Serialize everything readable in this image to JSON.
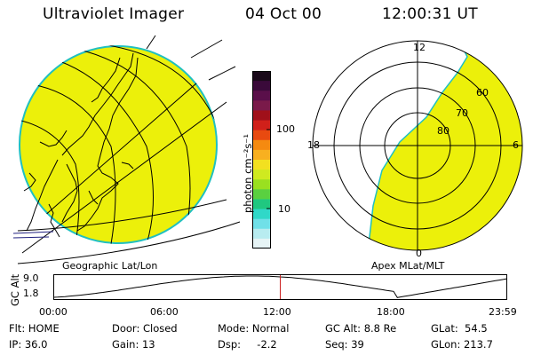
{
  "header": {
    "instrument": "Ultraviolet Imager",
    "date": "04 Oct 00",
    "time": "12:00:31 UT"
  },
  "colorbar": {
    "unit": "photon cm⁻²s⁻¹",
    "ticks": [
      {
        "value": 100,
        "label": "100"
      },
      {
        "value": 10,
        "label": "10"
      }
    ],
    "colors": [
      "#1a0a1a",
      "#3a0a3a",
      "#5a0f4a",
      "#7a1a4a",
      "#a0101a",
      "#d0201a",
      "#e84a10",
      "#f58a10",
      "#f8b020",
      "#f2e020",
      "#cfea20",
      "#9ae020",
      "#5ad040",
      "#20c880",
      "#30d8c8",
      "#70e0e8",
      "#b8ecf0",
      "#e6f4f6"
    ]
  },
  "left_map": {
    "caption": "Geographic Lat/Lon",
    "fill_color": "#ecf00a",
    "edge_color": "#20c0c0"
  },
  "right_map": {
    "caption": "Apex MLat/MLT",
    "fill_color": "#ecf00a",
    "mlt_labels": {
      "top": "12",
      "left": "18",
      "right": "6",
      "bottom": "0"
    },
    "lat_labels": [
      "60",
      "70",
      "80"
    ]
  },
  "altitude_plot": {
    "ylabel": "GC Alt",
    "yticks": [
      "9.0",
      "1.8"
    ],
    "xticks": [
      "00:00",
      "06:00",
      "12:00",
      "18:00",
      "23:59"
    ],
    "current_time_hours": 12.0,
    "marker_color": "#cc2020"
  },
  "status": {
    "row1": {
      "flt": "Flt: HOME",
      "door": "Door: Closed",
      "mode": "Mode: Normal",
      "gcalt": "GC Alt: 8.8 Re",
      "glat": "GLat:  54.5"
    },
    "row2": {
      "ip": "IP: 36.0",
      "gain": "Gain: 13",
      "dsp": "Dsp:     -2.2",
      "seq": "Seq: 39",
      "glon": "GLon: 213.7"
    }
  }
}
